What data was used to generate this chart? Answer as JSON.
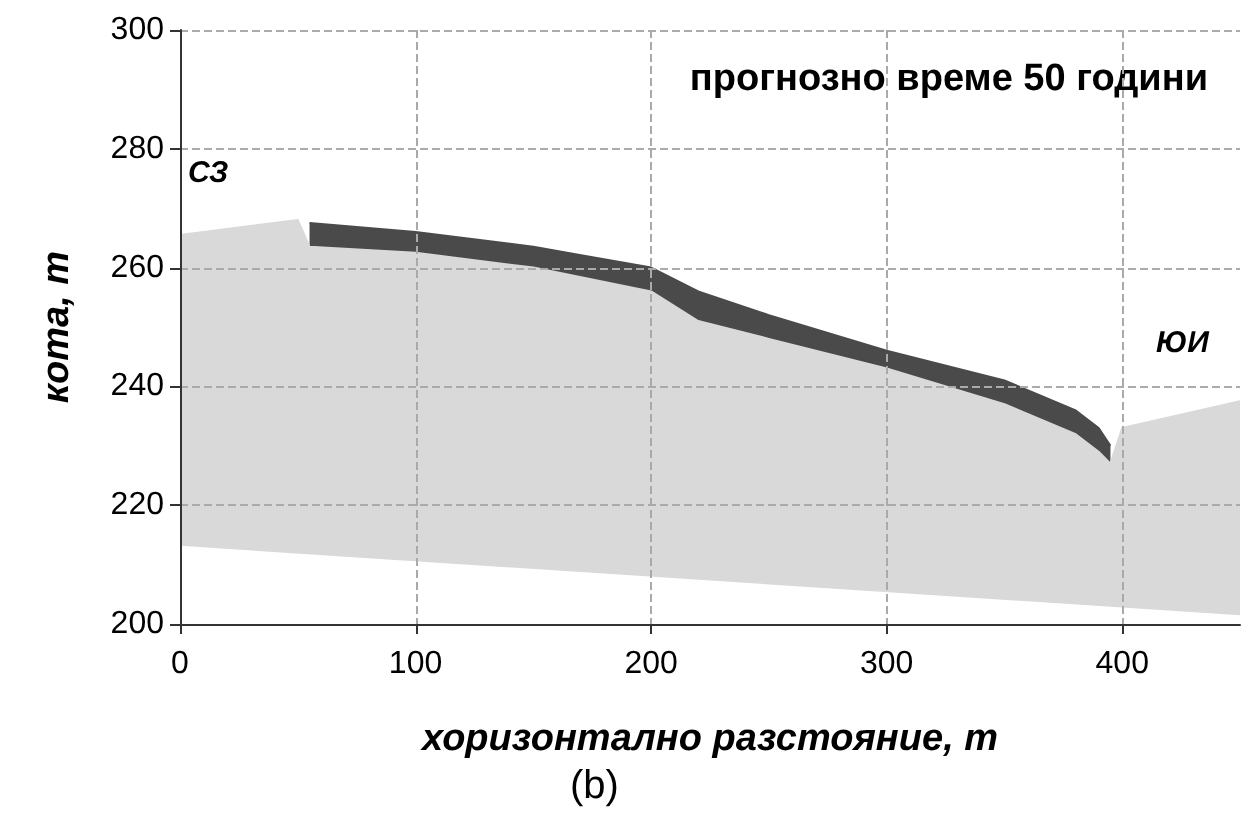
{
  "chart_data": {
    "type": "area",
    "title": "прогнозно време 50 години",
    "xlabel": "хоризонтално разстояние, m",
    "ylabel": "кота, m",
    "annotations": [
      "СЗ",
      "ЮИ",
      "(b)"
    ],
    "series": [
      {
        "color": "#4a4a4a",
        "x": [
          55,
          100,
          150,
          200,
          220,
          250,
          300,
          350,
          380,
          390,
          395
        ],
        "values": [
          267.5,
          266,
          263.5,
          260,
          256,
          252,
          246,
          241,
          236,
          233,
          230
        ]
      },
      {
        "color": "#d9d9d9",
        "x": [
          0,
          50,
          55,
          100,
          150,
          200,
          220,
          250,
          300,
          350,
          380,
          390,
          395,
          400,
          450
        ],
        "values": [
          265.5,
          268,
          263.5,
          262.5,
          260,
          256,
          251,
          248,
          243,
          237,
          232,
          229,
          227,
          233,
          237.5
        ]
      },
      {
        "color": "#ffffff",
        "x": [
          0,
          450
        ],
        "values": [
          213,
          201.3
        ]
      }
    ],
    "xlim": [
      0,
      450
    ],
    "xticks": [
      0,
      100,
      200,
      300,
      400
    ],
    "ylim": [
      200,
      300
    ],
    "yticks": [
      200,
      220,
      240,
      260,
      280,
      300
    ],
    "grid": true
  }
}
